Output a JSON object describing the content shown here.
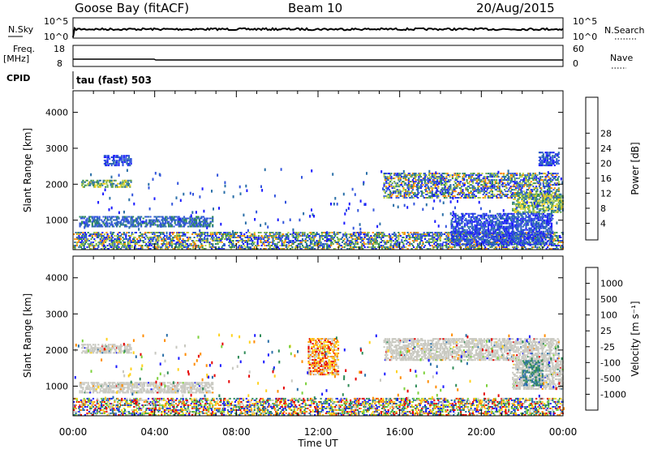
{
  "header": {
    "station": "Goose Bay (fitACF)",
    "beam": "Beam 10",
    "date": "20/Aug/2015"
  },
  "top_panels": {
    "nsky_label": "N.Sky",
    "nsky_ticks": [
      "10^5",
      "10^0"
    ],
    "nsearch_label": "N.Search",
    "nsearch_ticks": [
      "10^5",
      "10^0"
    ],
    "freq_label": "Freq.",
    "freq_unit": "[MHz]",
    "freq_ticks": [
      "18",
      "8"
    ],
    "nave_label": "Nave",
    "nave_ticks": [
      "60",
      "0"
    ],
    "cpid_label": "CPID",
    "cpid_value": "tau (fast) 503"
  },
  "chart_data": [
    {
      "type": "heatmap",
      "title": "",
      "ylabel": "Slant Range [km]",
      "xlabel": "",
      "x_tick_labels": [
        "00:00",
        "04:00",
        "08:00",
        "12:00",
        "16:00",
        "20:00",
        "00:00"
      ],
      "y_ticks": [
        1000,
        2000,
        3000,
        4000
      ],
      "y_tick_labels": [
        "1000",
        "2000",
        "3000",
        "4000"
      ],
      "xlim_hours": [
        0,
        24
      ],
      "ylim_km": [
        180,
        4600
      ],
      "colorbar": {
        "label": "Power [dB]",
        "tick_labels": [
          "4",
          "8",
          "12",
          "16",
          "20",
          "24",
          "28"
        ],
        "colors": [
          "#1a1aff",
          "#3355dd",
          "#2a6fa8",
          "#2e8b57",
          "#6aa84f",
          "#b8d44a",
          "#ffd21a",
          "#ff8c00",
          "#ff4500",
          "#e60000"
        ]
      },
      "regions": [
        {
          "t": [
            0.4,
            2.8
          ],
          "r": [
            1900,
            2100
          ],
          "level": "high"
        },
        {
          "t": [
            1.5,
            2.8
          ],
          "r": [
            2500,
            2800
          ],
          "level": "low"
        },
        {
          "t": [
            0.3,
            6.8
          ],
          "r": [
            800,
            1100
          ],
          "level": "mid"
        },
        {
          "t": [
            0,
            24
          ],
          "r": [
            180,
            650
          ],
          "level": "mixed"
        },
        {
          "t": [
            15.2,
            23.8
          ],
          "r": [
            1600,
            2300
          ],
          "level": "mixed"
        },
        {
          "t": [
            21.5,
            24
          ],
          "r": [
            1200,
            1700
          ],
          "level": "high"
        },
        {
          "t": [
            18.5,
            23.5
          ],
          "r": [
            300,
            1200
          ],
          "level": "low"
        },
        {
          "t": [
            22.8,
            23.8
          ],
          "r": [
            2500,
            2900
          ],
          "level": "low"
        }
      ]
    },
    {
      "type": "heatmap",
      "title": "",
      "ylabel": "Slant Range [km]",
      "xlabel": "Time UT",
      "x_tick_labels": [
        "00:00",
        "04:00",
        "08:00",
        "12:00",
        "16:00",
        "20:00",
        "00:00"
      ],
      "y_ticks": [
        1000,
        2000,
        3000,
        4000
      ],
      "y_tick_labels": [
        "1000",
        "2000",
        "3000",
        "4000"
      ],
      "xlim_hours": [
        0,
        24
      ],
      "ylim_km": [
        180,
        4600
      ],
      "colorbar": {
        "label": "Velocity [m s⁻¹]",
        "tick_labels": [
          "1000",
          "500",
          "100",
          "25",
          "-25",
          "-100",
          "-500",
          "-1000"
        ],
        "colors": [
          "#1a1aff",
          "#2a6fa8",
          "#2e8b57",
          "#7cd13a",
          "#c8c8c0",
          "#ffd21a",
          "#ff8c00",
          "#e60000"
        ]
      },
      "regions": [
        {
          "t": [
            0.4,
            2.8
          ],
          "r": [
            1900,
            2150
          ],
          "level": "ground"
        },
        {
          "t": [
            0.3,
            6.8
          ],
          "r": [
            800,
            1100
          ],
          "level": "ground"
        },
        {
          "t": [
            0,
            24
          ],
          "r": [
            180,
            650
          ],
          "level": "mixed"
        },
        {
          "t": [
            15.2,
            23.8
          ],
          "r": [
            1700,
            2300
          ],
          "level": "ground"
        },
        {
          "t": [
            21.5,
            24
          ],
          "r": [
            900,
            1700
          ],
          "level": "ground"
        },
        {
          "t": [
            11.5,
            13.0
          ],
          "r": [
            1300,
            2300
          ],
          "level": "neg"
        },
        {
          "t": [
            22.0,
            23.0
          ],
          "r": [
            1000,
            1700
          ],
          "level": "pos"
        }
      ]
    }
  ]
}
